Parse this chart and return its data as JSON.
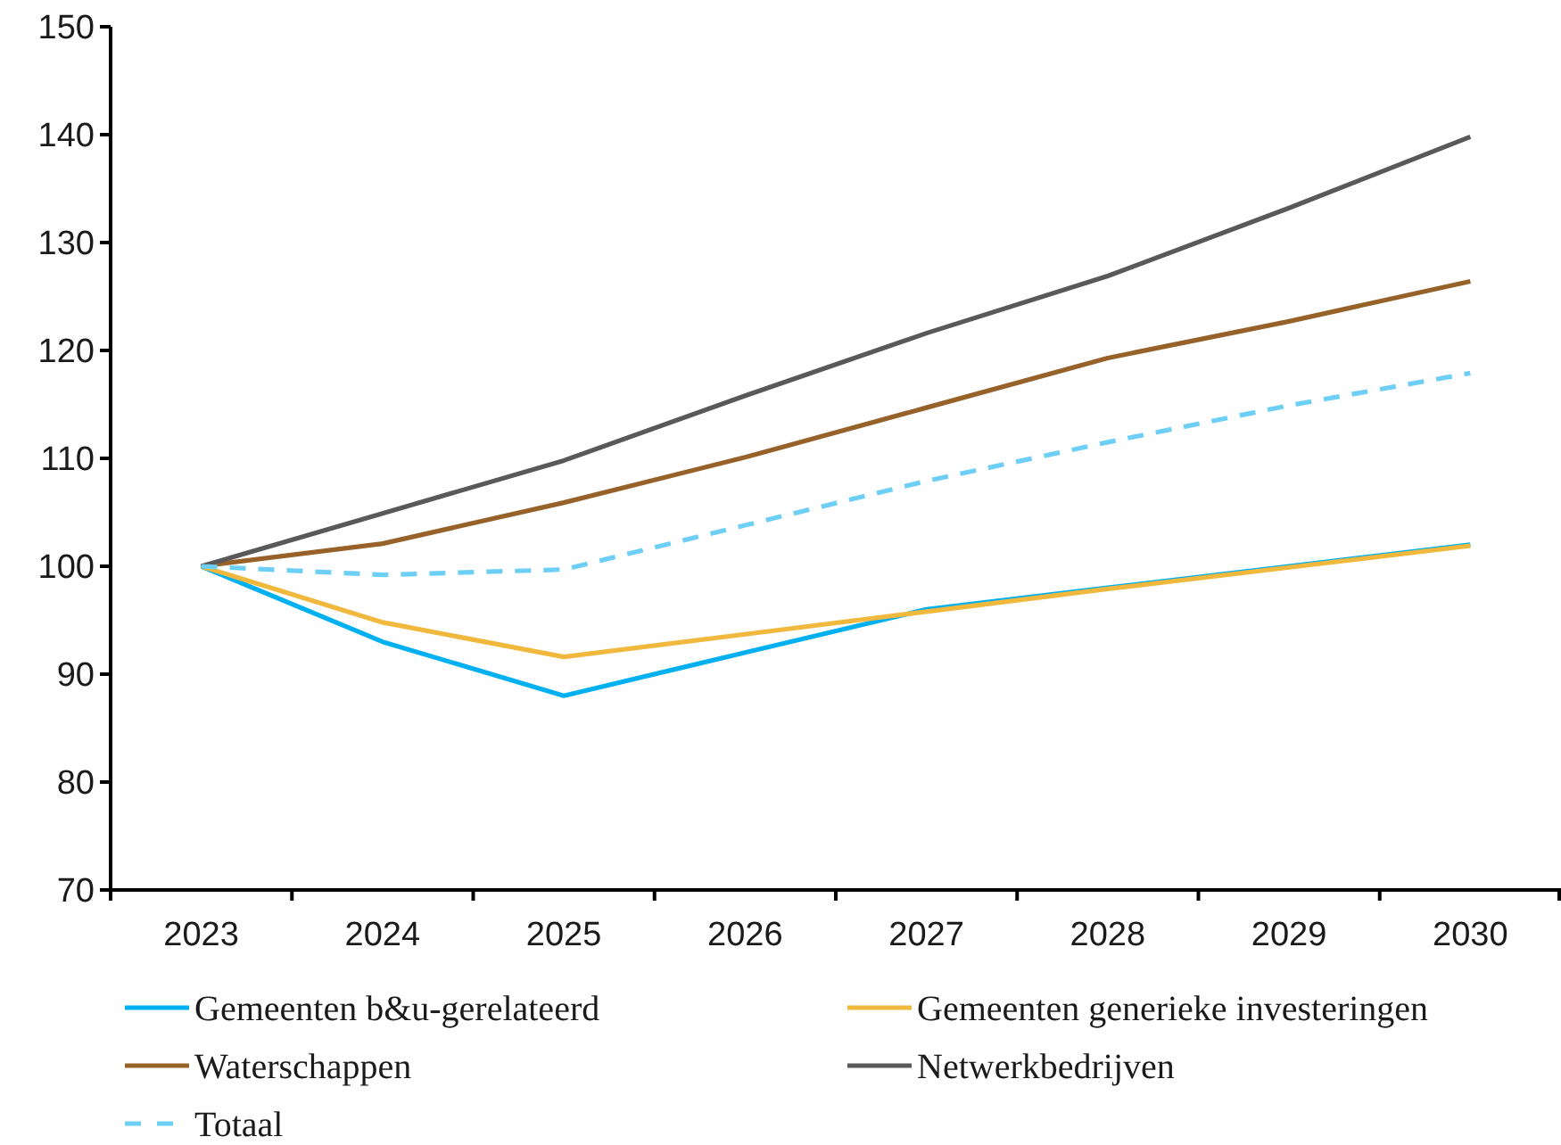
{
  "chart_data": {
    "type": "line",
    "categories": [
      "2023",
      "2024",
      "2025",
      "2026",
      "2027",
      "2028",
      "2029",
      "2030"
    ],
    "series": [
      {
        "name": "Gemeenten b&u-gerelateerd",
        "color": "#00b0f0",
        "values": [
          100,
          93.0,
          88.0,
          92.0,
          96.0,
          98.0,
          100.0,
          102.0
        ]
      },
      {
        "name": "Gemeenten generieke investeringen",
        "color": "#f0b83c",
        "values": [
          100,
          94.8,
          91.6,
          93.7,
          95.8,
          97.9,
          99.9,
          101.9
        ]
      },
      {
        "name": "Waterschappen",
        "color": "#97622a",
        "values": [
          100,
          102.1,
          105.9,
          110.1,
          114.7,
          119.3,
          122.7,
          126.4
        ]
      },
      {
        "name": "Netwerkbedrijven",
        "color": "#595959",
        "values": [
          100,
          104.9,
          109.8,
          115.8,
          121.6,
          126.9,
          133.2,
          139.8
        ]
      },
      {
        "name": "Totaal",
        "color": "#6ecff6",
        "line_style": "dashed",
        "values": [
          100,
          99.2,
          99.7,
          103.8,
          107.9,
          111.5,
          114.9,
          117.9
        ]
      }
    ],
    "ylim": [
      70,
      150
    ],
    "yticks": [
      70,
      80,
      90,
      100,
      110,
      120,
      130,
      140,
      150
    ],
    "grid": false,
    "legend": "bottom",
    "marker": "none"
  }
}
